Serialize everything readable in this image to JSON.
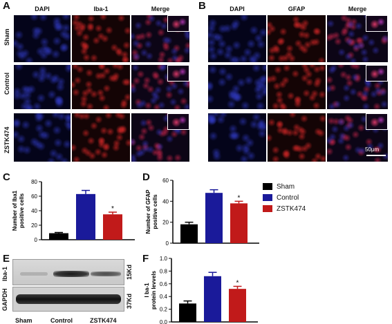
{
  "panels": {
    "A": "A",
    "B": "B",
    "C": "C",
    "D": "D",
    "E": "E",
    "F": "F"
  },
  "panel_A": {
    "columns": [
      "DAPI",
      "Iba-1",
      "Merge"
    ],
    "rows": [
      "Sham",
      "Control",
      "ZSTK474"
    ]
  },
  "panel_B": {
    "columns": [
      "DAPI",
      "GFAP",
      "Merge"
    ],
    "scale_bar": "50μm"
  },
  "legend": {
    "items": [
      {
        "label": "Sham",
        "color": "#000000"
      },
      {
        "label": "Control",
        "color": "#1a1a9a"
      },
      {
        "label": "ZSTK474",
        "color": "#c11a1a"
      }
    ]
  },
  "western": {
    "bands": [
      {
        "protein": "Iba-1",
        "size": "15Kd"
      },
      {
        "protein": "GAPDH",
        "size": "37Kd"
      }
    ],
    "lanes": [
      "Sham",
      "Control",
      "ZSTK474"
    ]
  },
  "chart_data": [
    {
      "panel": "C",
      "type": "bar",
      "categories": [
        "Sham",
        "Control",
        "ZSTK474"
      ],
      "values": [
        9,
        63,
        35
      ],
      "errors": [
        1,
        5,
        3
      ],
      "colors": [
        "#000000",
        "#1a1a9a",
        "#c11a1a"
      ],
      "significance": [
        "",
        "",
        "*"
      ],
      "ylabel": "Number of Iba1 positive cells",
      "ylim": [
        0,
        80
      ],
      "yticks": [
        "0",
        "20",
        "40",
        "60",
        "80"
      ]
    },
    {
      "panel": "D",
      "type": "bar",
      "categories": [
        "Sham",
        "Control",
        "ZSTK474"
      ],
      "values": [
        18,
        48,
        38
      ],
      "errors": [
        2,
        3,
        2
      ],
      "colors": [
        "#000000",
        "#1a1a9a",
        "#c11a1a"
      ],
      "significance": [
        "",
        "",
        "*"
      ],
      "ylabel": "Number of GFAP positive cells",
      "ylim": [
        0,
        60
      ],
      "yticks": [
        "0",
        "20",
        "40",
        "60"
      ]
    },
    {
      "panel": "F",
      "type": "bar",
      "categories": [
        "Sham",
        "Control",
        "ZSTK474"
      ],
      "values": [
        0.29,
        0.72,
        0.52
      ],
      "errors": [
        0.04,
        0.06,
        0.04
      ],
      "colors": [
        "#000000",
        "#1a1a9a",
        "#c11a1a"
      ],
      "significance": [
        "",
        "",
        "*"
      ],
      "ylabel": "I ba-1 protein levvels",
      "ylim": [
        0,
        1.0
      ],
      "yticks": [
        "0.0",
        "0.2",
        "0.4",
        "0.6",
        "0.8",
        "1.0"
      ]
    }
  ]
}
